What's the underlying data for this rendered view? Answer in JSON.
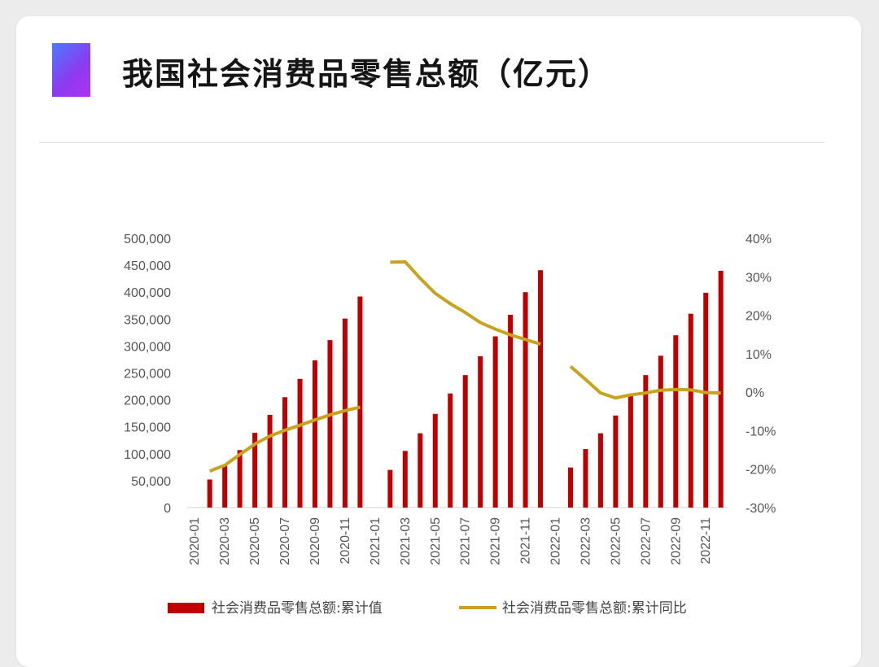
{
  "title": "我国社会消费品零售总额（亿元）",
  "colors": {
    "bar": "#c00000",
    "line": "#c8a31e",
    "accent_start": "#4a7cff",
    "accent_end": "#b230f0"
  },
  "chart_data": {
    "type": "bar",
    "categories": [
      "2020-01",
      "2020-02",
      "2020-03",
      "2020-04",
      "2020-05",
      "2020-06",
      "2020-07",
      "2020-08",
      "2020-09",
      "2020-10",
      "2020-11",
      "2020-12",
      "2021-01",
      "2021-02",
      "2021-03",
      "2021-04",
      "2021-05",
      "2021-06",
      "2021-07",
      "2021-08",
      "2021-09",
      "2021-10",
      "2021-11",
      "2021-12",
      "2022-01",
      "2022-02",
      "2022-03",
      "2022-04",
      "2022-05",
      "2022-06",
      "2022-07",
      "2022-08",
      "2022-09",
      "2022-10",
      "2022-11",
      "2022-12"
    ],
    "x_tick_labels": [
      "2020-01",
      "2020-03",
      "2020-05",
      "2020-07",
      "2020-09",
      "2020-11",
      "2021-01",
      "2021-03",
      "2021-05",
      "2021-07",
      "2021-09",
      "2021-11",
      "2022-01",
      "2022-03",
      "2022-05",
      "2022-07",
      "2022-09",
      "2022-11"
    ],
    "series": [
      {
        "name": "社会消费品零售总额:累计值",
        "type": "bar",
        "axis": "left",
        "values": [
          null,
          52130,
          78580,
          106758,
          138824,
          172256,
          205000,
          239000,
          273324,
          311000,
          351000,
          391981,
          null,
          70000,
          105221,
          138000,
          174000,
          211904,
          246000,
          281000,
          318000,
          358000,
          400000,
          440823,
          null,
          74426,
          108659,
          138000,
          171000,
          210432,
          246000,
          282000,
          320000,
          360000,
          399000,
          439733
        ]
      },
      {
        "name": "社会消费品零售总额:累计同比",
        "type": "line",
        "axis": "right",
        "values": [
          null,
          -20.5,
          -19.0,
          -16.2,
          -13.5,
          -11.4,
          -9.9,
          -8.6,
          -7.2,
          -5.9,
          -4.8,
          -3.9,
          null,
          33.8,
          33.9,
          29.6,
          25.7,
          23.0,
          20.7,
          18.1,
          16.4,
          14.9,
          13.7,
          12.5,
          null,
          6.7,
          3.3,
          -0.2,
          -1.5,
          -0.7,
          -0.2,
          0.5,
          0.7,
          0.6,
          -0.1,
          -0.2
        ]
      }
    ],
    "y_left": {
      "min": 0,
      "max": 500000,
      "ticks": [
        0,
        50000,
        100000,
        150000,
        200000,
        250000,
        300000,
        350000,
        400000,
        450000,
        500000
      ],
      "tick_labels": [
        "0",
        "50,000",
        "100,000",
        "150,000",
        "200,000",
        "250,000",
        "300,000",
        "350,000",
        "400,000",
        "450,000",
        "500,000"
      ]
    },
    "y_right": {
      "min": -30,
      "max": 40,
      "ticks": [
        -30,
        -20,
        -10,
        0,
        10,
        20,
        30,
        40
      ],
      "tick_labels": [
        "-30%",
        "-20%",
        "-10%",
        "0%",
        "10%",
        "20%",
        "30%",
        "40%"
      ]
    },
    "grid": false,
    "legend": {
      "position": "bottom",
      "items": [
        "社会消费品零售总额:累计值",
        "社会消费品零售总额:累计同比"
      ]
    }
  }
}
